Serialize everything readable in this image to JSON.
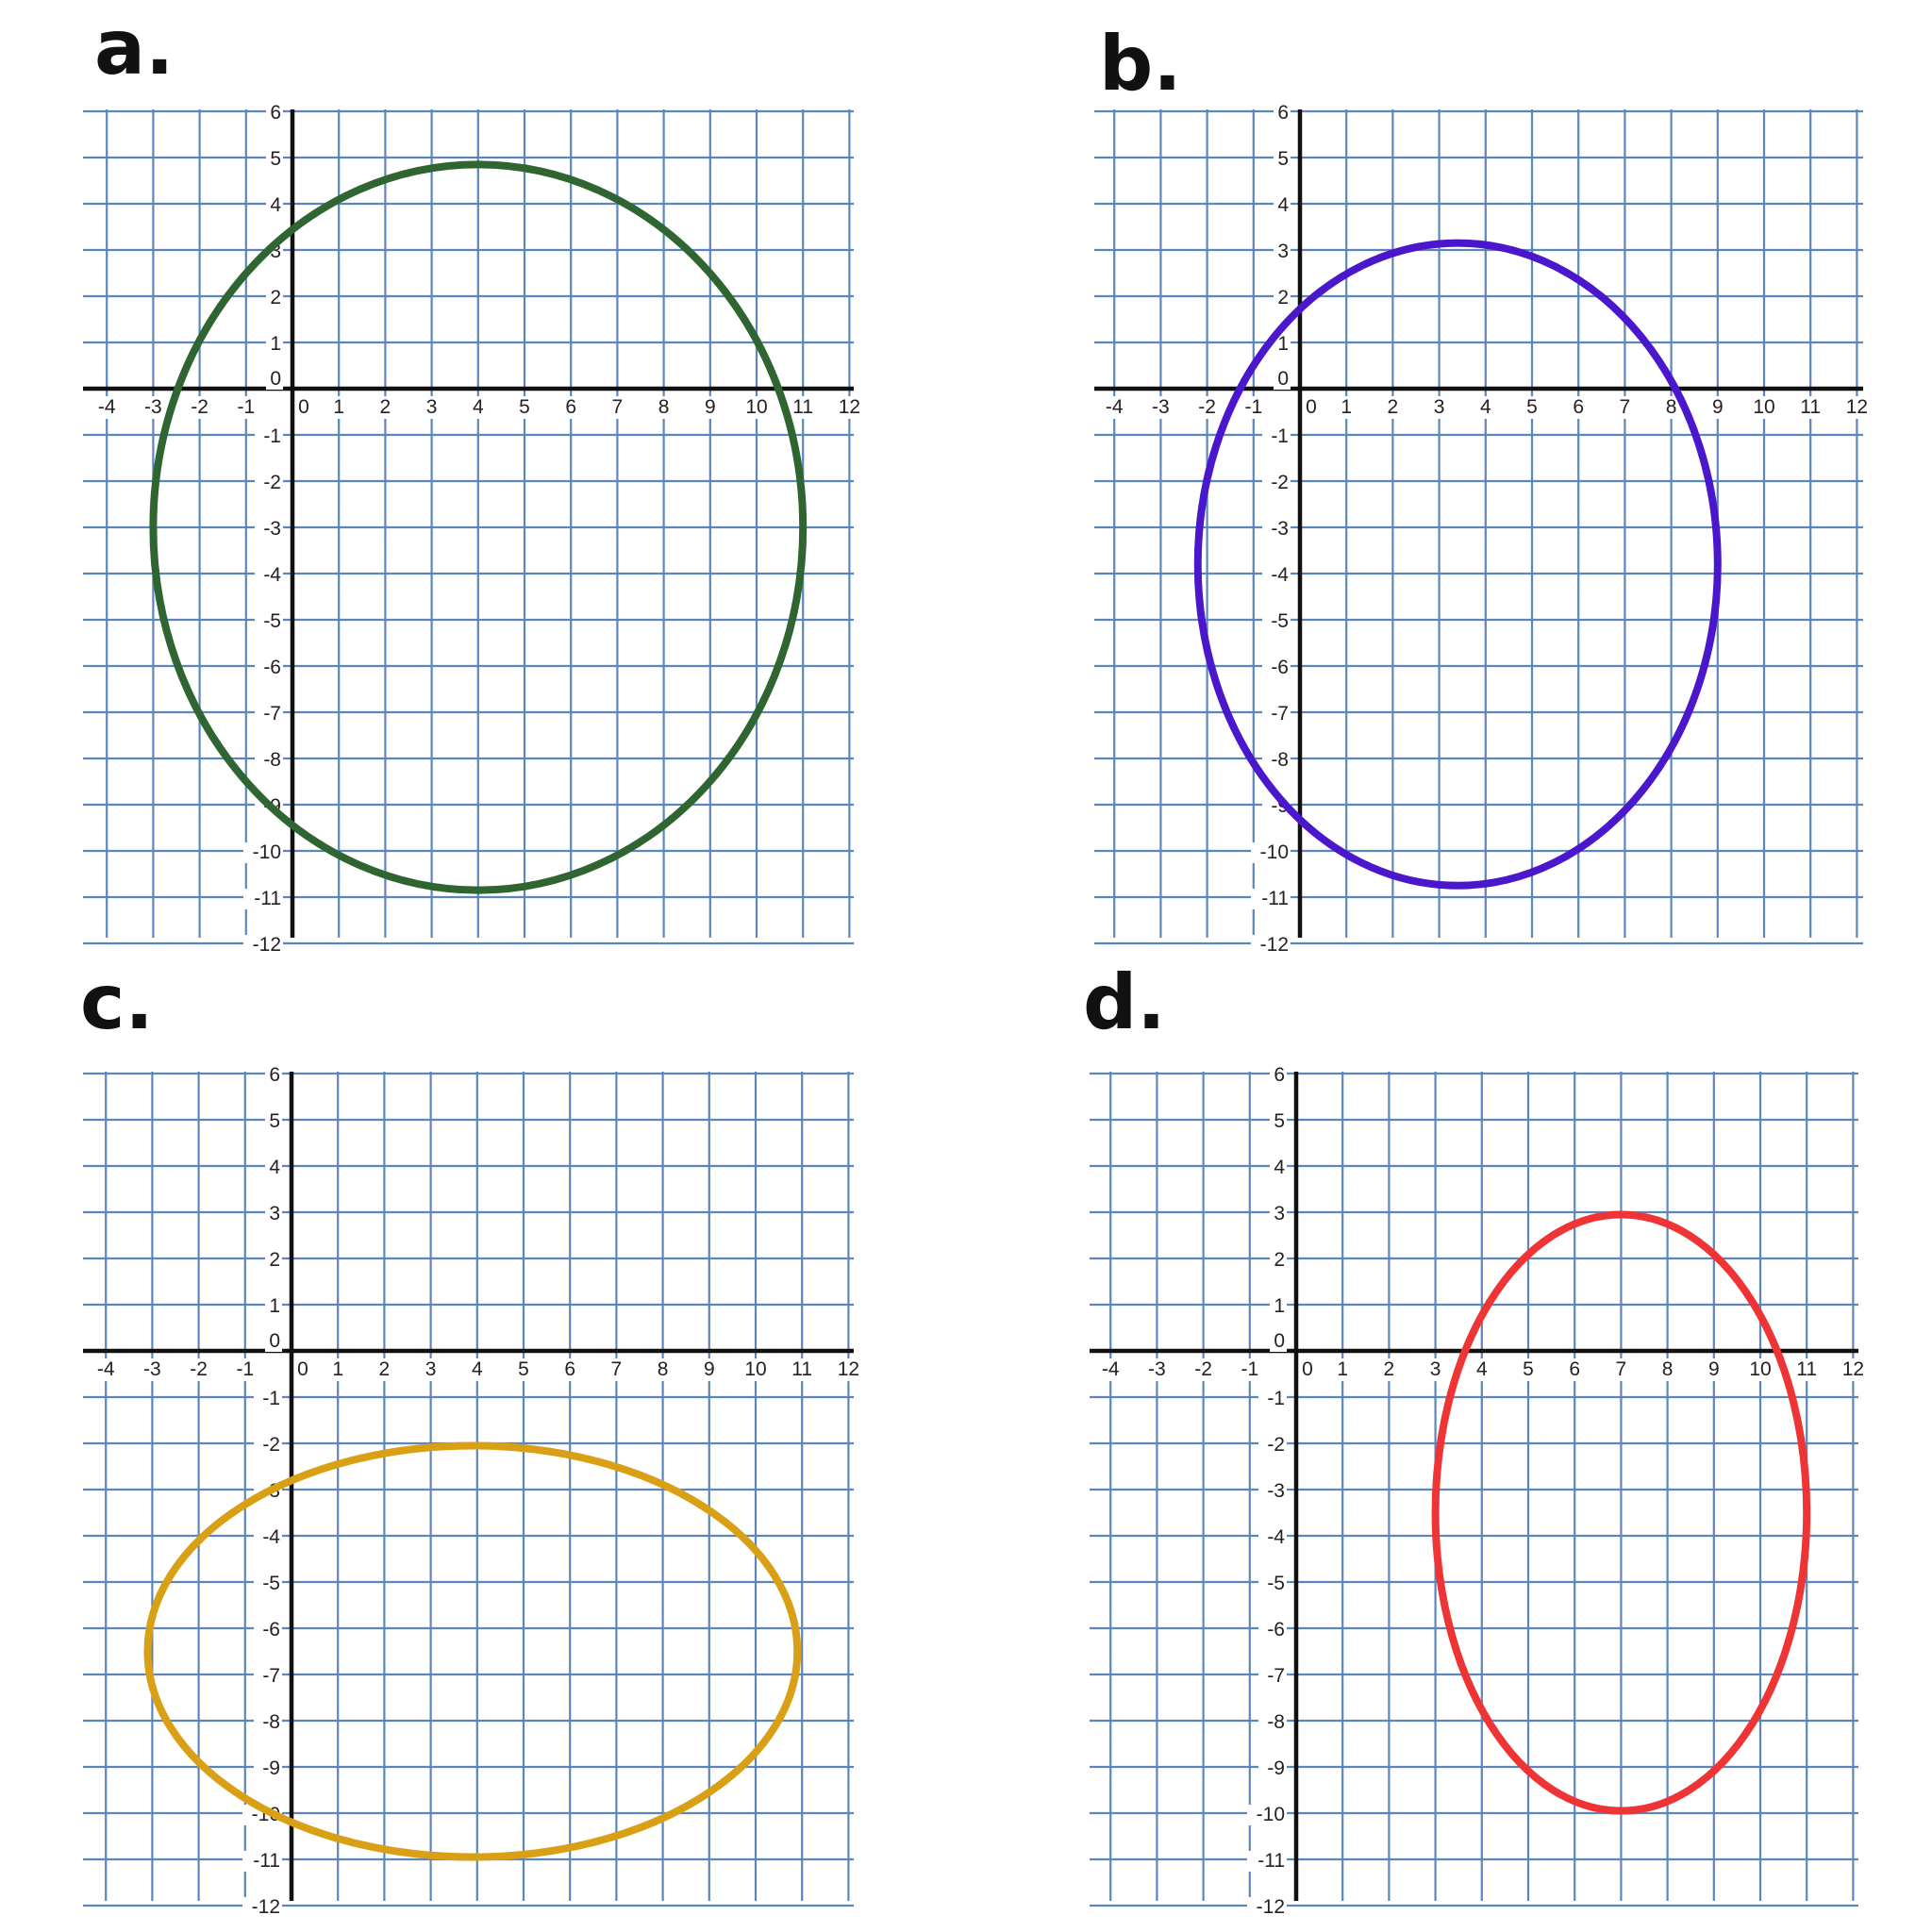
{
  "colors": {
    "grid": "#5b86bd",
    "axis": "#111111",
    "background": "#ffffff"
  },
  "chart_data": [
    {
      "type": "line",
      "panel_label": "a.",
      "title": "",
      "xlabel": "",
      "ylabel": "",
      "xlim": [
        -4,
        12
      ],
      "ylim": [
        -12,
        6
      ],
      "grid": true,
      "x_ticks": [
        "-4",
        "-3",
        "-2",
        "-1",
        "0",
        "1",
        "2",
        "3",
        "4",
        "5",
        "6",
        "7",
        "8",
        "9",
        "10",
        "11",
        "12"
      ],
      "y_ticks": [
        "6",
        "5",
        "4",
        "3",
        "2",
        "1",
        "0",
        "-1",
        "-2",
        "-3",
        "-4",
        "-5",
        "-6",
        "-7",
        "-8",
        "-9",
        "-10",
        "-11",
        "-12"
      ],
      "series": [
        {
          "shape": "ellipse",
          "center": [
            4,
            -3
          ],
          "semi_axis_x": 7,
          "semi_axis_y": 7.85,
          "color": "#2e6530"
        }
      ]
    },
    {
      "type": "line",
      "panel_label": "b.",
      "title": "",
      "xlabel": "",
      "ylabel": "",
      "xlim": [
        -4,
        12
      ],
      "ylim": [
        -12,
        6
      ],
      "grid": true,
      "x_ticks": [
        "-4",
        "-3",
        "-2",
        "-1",
        "0",
        "1",
        "2",
        "3",
        "4",
        "5",
        "6",
        "7",
        "8",
        "9",
        "10",
        "11",
        "12"
      ],
      "y_ticks": [
        "6",
        "5",
        "4",
        "3",
        "2",
        "1",
        "0",
        "-1",
        "-2",
        "-3",
        "-4",
        "-5",
        "-6",
        "-7",
        "-8",
        "-9",
        "-10",
        "-11",
        "-12"
      ],
      "series": [
        {
          "shape": "ellipse",
          "center": [
            3.4,
            -3.8
          ],
          "semi_axis_x": 5.6,
          "semi_axis_y": 6.95,
          "color": "#4a17cc"
        }
      ]
    },
    {
      "type": "line",
      "panel_label": "c.",
      "title": "",
      "xlabel": "",
      "ylabel": "",
      "xlim": [
        -4,
        12
      ],
      "ylim": [
        -12,
        6
      ],
      "grid": true,
      "x_ticks": [
        "-4",
        "-3",
        "-2",
        "-1",
        "0",
        "1",
        "2",
        "3",
        "4",
        "5",
        "6",
        "7",
        "8",
        "9",
        "10",
        "11",
        "12"
      ],
      "y_ticks": [
        "6",
        "5",
        "4",
        "3",
        "2",
        "1",
        "0",
        "-1",
        "-2",
        "-3",
        "-4",
        "-5",
        "-6",
        "-7",
        "-8",
        "-9",
        "-10",
        "-11",
        "-12"
      ],
      "series": [
        {
          "shape": "ellipse",
          "center": [
            3.9,
            -6.5
          ],
          "semi_axis_x": 7,
          "semi_axis_y": 4.45,
          "color": "#d9a016"
        }
      ]
    },
    {
      "type": "line",
      "panel_label": "d.",
      "title": "",
      "xlabel": "",
      "ylabel": "",
      "xlim": [
        -4,
        12
      ],
      "ylim": [
        -12,
        6
      ],
      "grid": true,
      "x_ticks": [
        "-4",
        "-3",
        "-2",
        "-1",
        "0",
        "1",
        "2",
        "3",
        "4",
        "5",
        "6",
        "7",
        "8",
        "9",
        "10",
        "11",
        "12"
      ],
      "y_ticks": [
        "6",
        "5",
        "4",
        "3",
        "2",
        "1",
        "0",
        "-1",
        "-2",
        "-3",
        "-4",
        "-5",
        "-6",
        "-7",
        "-8",
        "-9",
        "-10",
        "-11",
        "-12"
      ],
      "series": [
        {
          "shape": "ellipse",
          "center": [
            7,
            -3.5
          ],
          "semi_axis_x": 4,
          "semi_axis_y": 6.45,
          "color": "#ee3434"
        }
      ]
    }
  ]
}
